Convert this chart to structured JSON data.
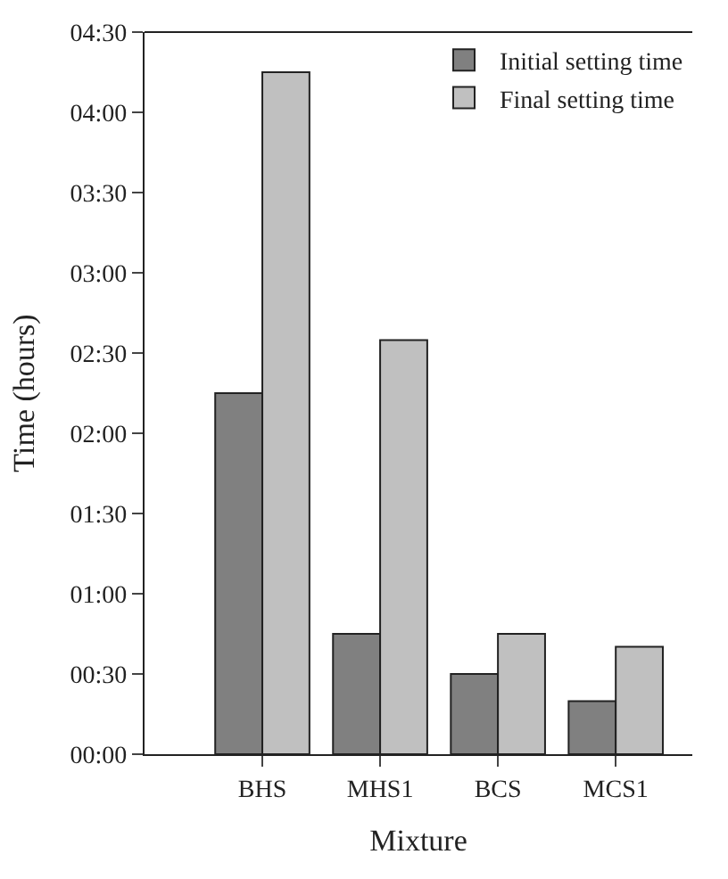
{
  "chart_data": {
    "type": "bar",
    "xlabel": "Mixture",
    "ylabel": "Time (hours)",
    "categories": [
      "BHS",
      "MHS1",
      "BCS",
      "MCS1"
    ],
    "series": [
      {
        "name": "Initial setting time",
        "color": "#808080",
        "values": [
          2.25,
          0.75,
          0.5,
          0.33
        ]
      },
      {
        "name": "Final setting time",
        "color": "#c0c0c0",
        "values": [
          4.25,
          2.58,
          0.75,
          0.67
        ]
      }
    ],
    "ylim": [
      0,
      4.5
    ],
    "yticks": [
      {
        "value": 0,
        "label": "00:00"
      },
      {
        "value": 0.5,
        "label": "00:30"
      },
      {
        "value": 1,
        "label": "01:00"
      },
      {
        "value": 1.5,
        "label": "01:30"
      },
      {
        "value": 2,
        "label": "02:00"
      },
      {
        "value": 2.5,
        "label": "02:30"
      },
      {
        "value": 3,
        "label": "03:00"
      },
      {
        "value": 3.5,
        "label": "03:30"
      },
      {
        "value": 4,
        "label": "04:00"
      },
      {
        "value": 4.5,
        "label": "04:30"
      }
    ],
    "legend": "top right"
  }
}
